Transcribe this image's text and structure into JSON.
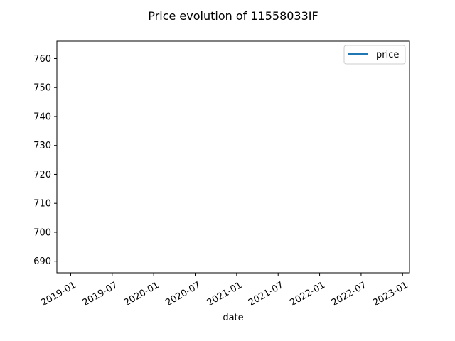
{
  "chart_data": {
    "type": "line",
    "title": "Price evolution of 11558033IF",
    "xlabel": "date",
    "ylabel": "",
    "x_ticks": [
      "2019-01",
      "2019-07",
      "2020-01",
      "2020-07",
      "2021-01",
      "2021-07",
      "2022-01",
      "2022-07",
      "2023-01"
    ],
    "y_ticks": [
      690,
      700,
      710,
      720,
      730,
      740,
      750,
      760
    ],
    "xlim": [
      "2018-11",
      "2023-02"
    ],
    "ylim": [
      686,
      766
    ],
    "grid": false,
    "legend_position": "top-right",
    "series": [
      {
        "name": "price",
        "color": "#1f77b4",
        "x": [],
        "y": []
      }
    ]
  }
}
